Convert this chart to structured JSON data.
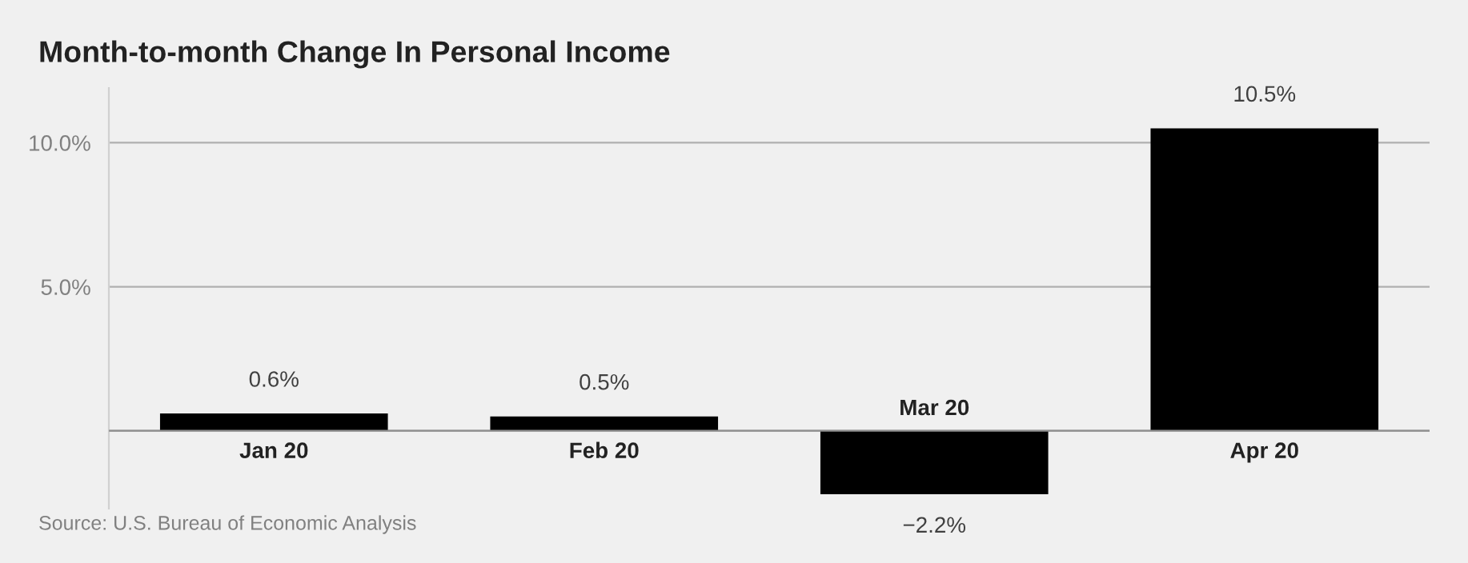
{
  "chart_data": {
    "type": "bar",
    "title": "Month-to-month Change In Personal Income",
    "categories": [
      "Jan 20",
      "Feb 20",
      "Mar 20",
      "Apr 20"
    ],
    "values": [
      0.6,
      0.5,
      -2.2,
      10.5
    ],
    "value_labels": [
      "0.6%",
      "0.5%",
      "−2.2%",
      "10.5%"
    ],
    "color": "#000000",
    "ylim": [
      -2.7,
      11.9
    ],
    "yticks": [
      {
        "value": 0,
        "label": null
      },
      {
        "value": 5,
        "label": "5.0%"
      },
      {
        "value": 10,
        "label": "10.0%"
      }
    ],
    "grid": "y",
    "annotations": [
      "Source: U.S. Bureau of Economic Analysis"
    ]
  }
}
